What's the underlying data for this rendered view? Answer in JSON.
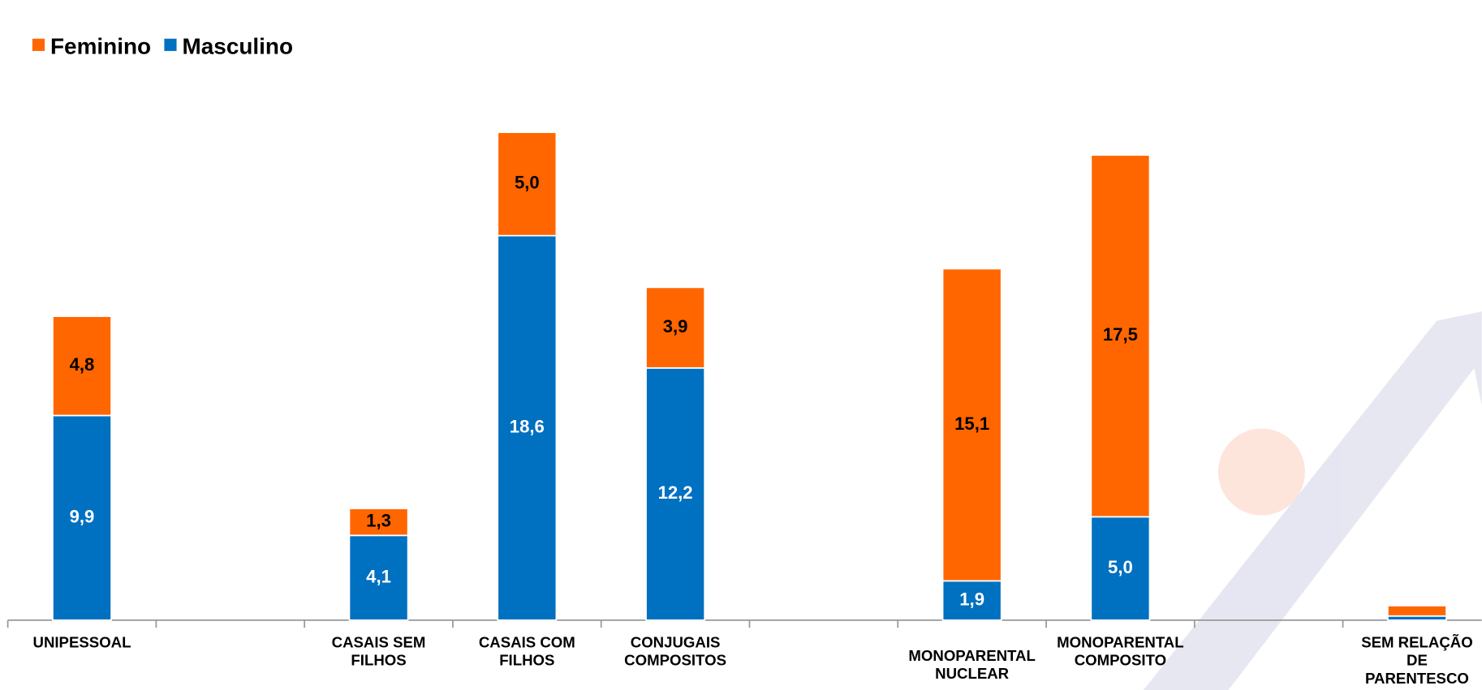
{
  "chart_data": {
    "type": "stacked-bar",
    "categories": [
      "UNIPESSOAL",
      null,
      "CASAIS SEM\nFILHOS",
      "CASAIS COM\nFILHOS",
      "CONJUGAIS\nCOMPOSITOS",
      null,
      "MONOPARENTAL\nNUCLEAR",
      "MONOPARENTAL\nCOMPOSITO",
      null,
      "SEM RELAÇÃO\nDE\nPARENTESCO"
    ],
    "series": [
      {
        "name": "Feminino",
        "color": "#ff6600",
        "label_color": "#000000",
        "values": [
          4.8,
          null,
          1.3,
          5.0,
          3.9,
          null,
          15.1,
          17.5,
          null,
          0.5
        ],
        "value_labels": [
          "4,8",
          null,
          "1,3",
          "5,0",
          "3,9",
          null,
          "15,1",
          "17,5",
          null,
          null
        ]
      },
      {
        "name": "Masculino",
        "color": "#0070c0",
        "label_color": "#ffffff",
        "values": [
          9.9,
          null,
          4.1,
          18.6,
          12.2,
          null,
          1.9,
          5.0,
          null,
          0.2
        ],
        "value_labels": [
          "9,9",
          null,
          "4,1",
          "18,6",
          "12,2",
          null,
          "1,9",
          "5,0",
          null,
          null
        ]
      }
    ],
    "stack_order": [
      1,
      0
    ],
    "ylim": [
      0,
      30
    ],
    "legend": "top-left"
  }
}
